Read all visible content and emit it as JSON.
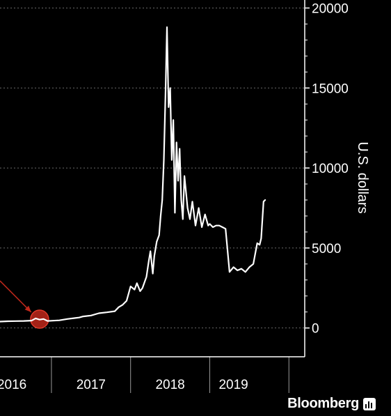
{
  "chart_data": {
    "type": "line",
    "ylabel": "U.S. dollars",
    "ylim": [
      -1800,
      20500
    ],
    "xlim": [
      2015.35,
      2019.2
    ],
    "y_ticks": [
      0,
      5000,
      10000,
      15000,
      20000
    ],
    "y_tick_labels": [
      "0",
      "5000",
      "10000",
      "15000",
      "20000"
    ],
    "x_dividers": [
      2016.0,
      2017.0,
      2018.0,
      2019.0
    ],
    "x_category_labels": [
      {
        "label": "2016",
        "x": 2015.5
      },
      {
        "label": "2017",
        "x": 2016.5
      },
      {
        "label": "2018",
        "x": 2017.5
      },
      {
        "label": "2019",
        "x": 2018.3
      }
    ],
    "grid": true,
    "axis_position": "right",
    "line_color": "#ffffff",
    "highlight": {
      "x": 2015.85,
      "y": 550,
      "color": "#c0281b"
    },
    "arrow_color": "#c0281b",
    "series": [
      {
        "x": [
          2015.35,
          2015.45,
          2015.55,
          2015.65,
          2015.75,
          2015.8,
          2015.85,
          2015.9,
          2015.95,
          2016.0,
          2016.1,
          2016.2,
          2016.3,
          2016.35,
          2016.4,
          2016.5,
          2016.6,
          2016.7,
          2016.8,
          2016.85,
          2016.9,
          2016.95,
          2017.0,
          2017.05,
          2017.08,
          2017.12,
          2017.15,
          2017.2,
          2017.23,
          2017.25,
          2017.28,
          2017.3,
          2017.33,
          2017.36,
          2017.38,
          2017.4,
          2017.42,
          2017.44,
          2017.46,
          2017.48,
          2017.5,
          2017.52,
          2017.54,
          2017.56,
          2017.58,
          2017.6,
          2017.62,
          2017.64,
          2017.66,
          2017.68,
          2017.72,
          2017.75,
          2017.78,
          2017.82,
          2017.86,
          2017.9,
          2017.94,
          2017.98,
          2018.0,
          2018.04,
          2018.08,
          2018.12,
          2018.16,
          2018.2,
          2018.25,
          2018.3,
          2018.35,
          2018.4,
          2018.45,
          2018.5,
          2018.55,
          2018.6,
          2018.63,
          2018.65,
          2018.68,
          2018.7
        ],
        "y": [
          400,
          420,
          430,
          440,
          460,
          600,
          520,
          560,
          440,
          450,
          480,
          560,
          620,
          650,
          720,
          780,
          920,
          980,
          1050,
          1300,
          1450,
          1700,
          2600,
          2400,
          2800,
          2300,
          2500,
          3200,
          4200,
          4800,
          3400,
          4500,
          5400,
          5800,
          7000,
          8000,
          10500,
          14500,
          18800,
          13800,
          15000,
          10500,
          13000,
          7200,
          11600,
          9200,
          11200,
          8000,
          6800,
          9500,
          7500,
          6800,
          7900,
          6400,
          7500,
          6300,
          7100,
          6400,
          6500,
          6300,
          6400,
          6400,
          6300,
          6200,
          3500,
          3800,
          3600,
          3700,
          3500,
          3800,
          4000,
          5300,
          5200,
          5600,
          7900,
          8000
        ]
      }
    ]
  },
  "brand": {
    "name": "Bloomberg"
  }
}
